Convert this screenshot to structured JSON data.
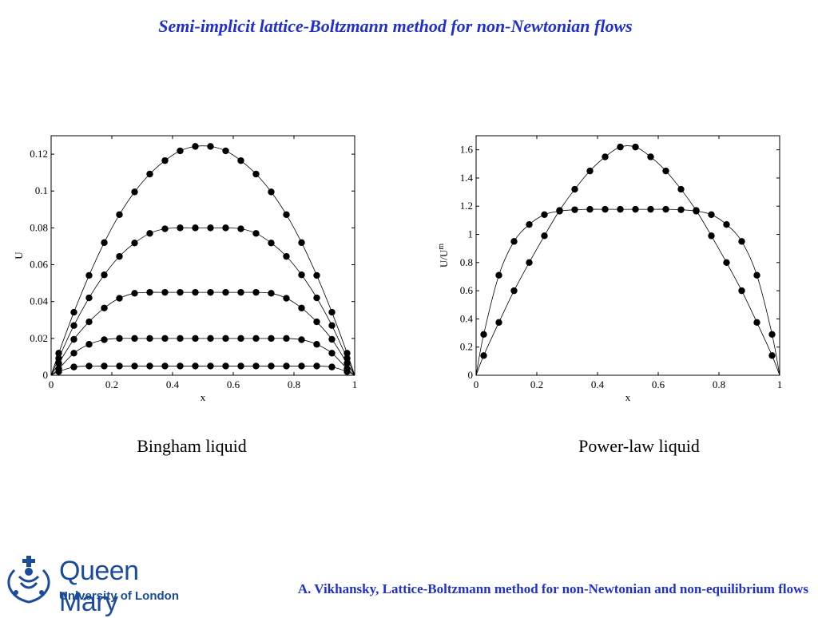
{
  "slide": {
    "title": "Semi-implicit lattice-Boltzmann method for non-Newtonian flows",
    "footer": "A. Vikhansky, Lattice-Boltzmann method for non-Newtonian and non-equilibrium flows",
    "logo": {
      "name": "Queen Mary",
      "subtitle": "University of London",
      "icon": "crown-crest-icon",
      "color": "#1b4b9a"
    },
    "title_color": "#1f2fd0"
  },
  "captions": {
    "left": "Bingham liquid",
    "right": "Power-law liquid"
  },
  "chart_data": [
    {
      "type": "line",
      "title": "",
      "xlabel": "x",
      "ylabel": "U",
      "xlim": [
        0,
        1
      ],
      "ylim": [
        0,
        0.13
      ],
      "xticks": [
        0,
        0.2,
        0.4,
        0.6,
        0.8,
        1
      ],
      "xtick_labels": [
        "0",
        "0.2",
        "0.4",
        "0.6",
        "0.8",
        "1"
      ],
      "yticks": [
        0,
        0.02,
        0.04,
        0.06,
        0.08,
        0.1,
        0.12
      ],
      "ytick_labels": [
        "0",
        "0.02",
        "0.04",
        "0.06",
        "0.08",
        "0.1",
        "0.12"
      ],
      "grid": false,
      "markers_x": [
        0.025,
        0.075,
        0.125,
        0.175,
        0.225,
        0.275,
        0.325,
        0.375,
        0.425,
        0.475,
        0.525,
        0.575,
        0.625,
        0.675,
        0.725,
        0.775,
        0.825,
        0.875,
        0.925,
        0.975
      ],
      "series": [
        {
          "values": [
            0.012,
            0.0342,
            0.0542,
            0.072,
            0.0872,
            0.0995,
            0.1092,
            0.1165,
            0.1218,
            0.1242,
            0.1242,
            0.1218,
            0.1165,
            0.1092,
            0.0995,
            0.0872,
            0.072,
            0.0542,
            0.0342,
            0.012
          ]
        },
        {
          "values": [
            0.0092,
            0.027,
            0.042,
            0.0545,
            0.0645,
            0.0718,
            0.077,
            0.0795,
            0.08,
            0.08,
            0.08,
            0.08,
            0.0795,
            0.077,
            0.0718,
            0.0645,
            0.0545,
            0.042,
            0.027,
            0.0092
          ]
        },
        {
          "values": [
            0.0065,
            0.0195,
            0.029,
            0.0365,
            0.0418,
            0.0445,
            0.045,
            0.045,
            0.045,
            0.045,
            0.045,
            0.045,
            0.045,
            0.045,
            0.0445,
            0.0418,
            0.0365,
            0.029,
            0.0195,
            0.0065
          ]
        },
        {
          "values": [
            0.0035,
            0.012,
            0.0168,
            0.0193,
            0.02,
            0.02,
            0.02,
            0.02,
            0.02,
            0.02,
            0.02,
            0.02,
            0.02,
            0.02,
            0.02,
            0.02,
            0.0193,
            0.0168,
            0.012,
            0.0035
          ]
        },
        {
          "values": [
            0.002,
            0.0045,
            0.005,
            0.005,
            0.005,
            0.005,
            0.005,
            0.005,
            0.005,
            0.005,
            0.005,
            0.005,
            0.005,
            0.005,
            0.005,
            0.005,
            0.005,
            0.005,
            0.0045,
            0.002
          ]
        }
      ]
    },
    {
      "type": "line",
      "title": "",
      "xlabel": "x",
      "ylabel": "U/U",
      "ylabel_sub": "m",
      "xlim": [
        0,
        1
      ],
      "ylim": [
        0,
        1.7
      ],
      "xticks": [
        0,
        0.2,
        0.4,
        0.6,
        0.8,
        1
      ],
      "xtick_labels": [
        "0",
        "0.2",
        "0.4",
        "0.6",
        "0.8",
        "1"
      ],
      "yticks": [
        0,
        0.2,
        0.4,
        0.6,
        0.8,
        1,
        1.2,
        1.4,
        1.6
      ],
      "ytick_labels": [
        "0",
        "0.2",
        "0.4",
        "0.6",
        "0.8",
        "1",
        "1.2",
        "1.4",
        "1.6"
      ],
      "grid": false,
      "markers_x": [
        0.025,
        0.075,
        0.125,
        0.175,
        0.225,
        0.275,
        0.325,
        0.375,
        0.425,
        0.475,
        0.525,
        0.575,
        0.625,
        0.675,
        0.725,
        0.775,
        0.825,
        0.875,
        0.925,
        0.975
      ],
      "series": [
        {
          "values": [
            0.14,
            0.375,
            0.6,
            0.8,
            0.99,
            1.17,
            1.32,
            1.45,
            1.55,
            1.62,
            1.62,
            1.55,
            1.45,
            1.32,
            1.17,
            0.99,
            0.8,
            0.6,
            0.375,
            0.14
          ]
        },
        {
          "values": [
            0.29,
            0.71,
            0.95,
            1.07,
            1.14,
            1.165,
            1.175,
            1.178,
            1.178,
            1.178,
            1.178,
            1.178,
            1.178,
            1.175,
            1.165,
            1.14,
            1.07,
            0.95,
            0.71,
            0.29
          ]
        }
      ]
    }
  ]
}
